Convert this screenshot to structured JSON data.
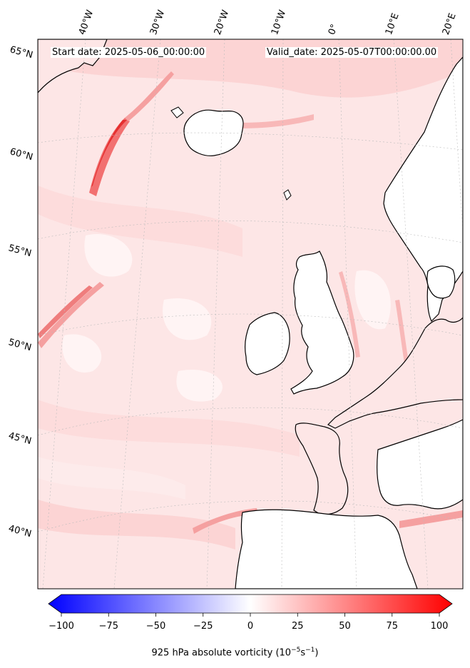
{
  "map": {
    "header_left": "Start date: 2025-05-06_00:00:00",
    "header_right": "Valid_date: 2025-05-07T00:00:00.00",
    "lon_labels": [
      "40°W",
      "30°W",
      "20°W",
      "10°W",
      "0°",
      "10°E",
      "20°E"
    ],
    "lat_labels": [
      "65°N",
      "60°N",
      "55°N",
      "50°N",
      "45°N",
      "40°N"
    ],
    "field": "925 hPa absolute vorticity",
    "colormap": "bwr",
    "colors": {
      "neg": "#0000ff",
      "zero": "#ffffff",
      "pos": "#ff0000",
      "land_outline": "#000000",
      "gridline": "#bbbbbb"
    }
  },
  "colorbar": {
    "ticks": [
      "−100",
      "−75",
      "−50",
      "−25",
      "0",
      "25",
      "50",
      "75",
      "100"
    ],
    "min": -100,
    "max": 100,
    "extend": "both",
    "label": "925 hPa absolute vorticity (10",
    "label_exp1": "−5",
    "label_mid": "s",
    "label_exp2": "−1",
    "label_end": ")"
  }
}
